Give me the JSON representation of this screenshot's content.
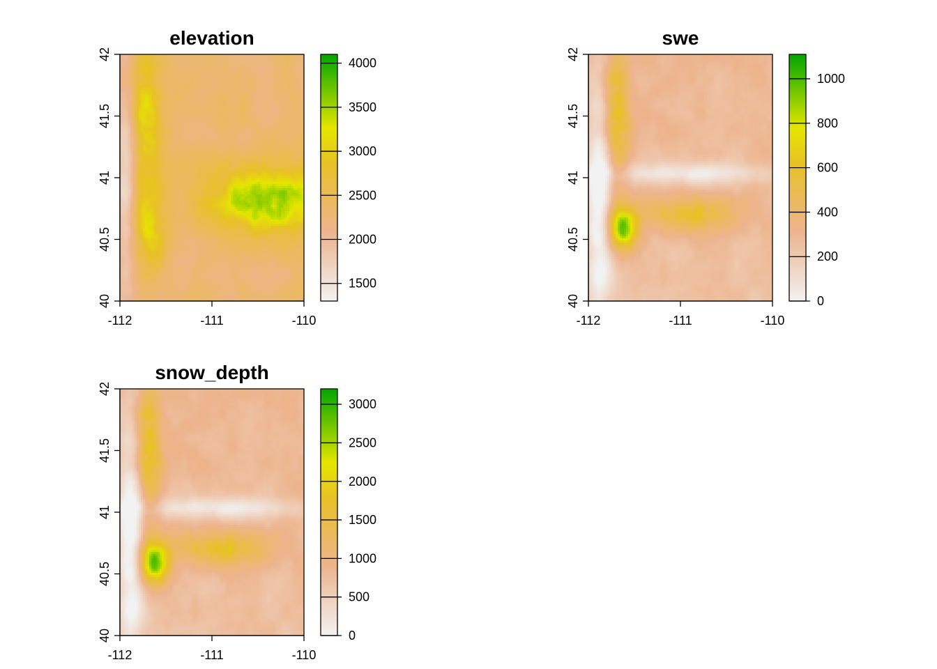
{
  "colors": {
    "scale_low": "#F2F2F2",
    "scale_mid_low": "#EDB48E",
    "scale_mid": "#E7C224",
    "scale_mid_high": "#E6E600",
    "scale_high": "#00A600"
  },
  "chart_data": [
    {
      "type": "heatmap",
      "title": "elevation",
      "x_ticks": [
        "-112",
        "-111",
        "-110"
      ],
      "y_ticks": [
        "40",
        "40.5",
        "41",
        "41.5",
        "42"
      ],
      "xlim": [
        -112,
        -110
      ],
      "ylim": [
        40,
        42
      ],
      "legend_ticks": [
        "1500",
        "2000",
        "2500",
        "3000",
        "3500",
        "4000"
      ],
      "legend_range": [
        1300,
        4100
      ]
    },
    {
      "type": "heatmap",
      "title": "swe",
      "x_ticks": [
        "-112",
        "-111",
        "-110"
      ],
      "y_ticks": [
        "40",
        "40.5",
        "41",
        "41.5",
        "42"
      ],
      "xlim": [
        -112,
        -110
      ],
      "ylim": [
        40,
        42
      ],
      "legend_ticks": [
        "0",
        "200",
        "400",
        "600",
        "800",
        "1000"
      ],
      "legend_range": [
        0,
        1110
      ]
    },
    {
      "type": "heatmap",
      "title": "snow_depth",
      "x_ticks": [
        "-112",
        "-111",
        "-110"
      ],
      "y_ticks": [
        "40",
        "40.5",
        "41",
        "41.5",
        "42"
      ],
      "xlim": [
        -112,
        -110
      ],
      "ylim": [
        40,
        42
      ],
      "legend_ticks": [
        "0",
        "500",
        "1000",
        "1500",
        "2000",
        "2500",
        "3000"
      ],
      "legend_range": [
        0,
        3200
      ]
    }
  ]
}
